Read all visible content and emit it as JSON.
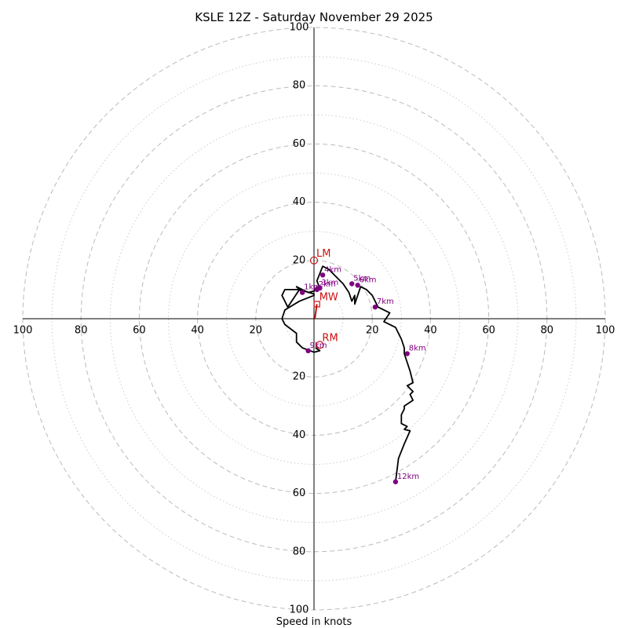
{
  "chart_data": {
    "type": "line",
    "title": "KSLE 12Z - Saturday November 29 2025",
    "xlabel": "Speed in knots",
    "ylabel": "",
    "xlim": [
      -100,
      100
    ],
    "ylim": [
      -100,
      100
    ],
    "units": "knots",
    "rings_major": [
      20,
      40,
      60,
      80,
      100
    ],
    "rings_minor": [
      10,
      30,
      50,
      70,
      90
    ],
    "tick_values": [
      20,
      40,
      60,
      80,
      100
    ],
    "grid": true,
    "colors": {
      "trace": "#000000",
      "altitude": "#800080",
      "motion": "#cc1111",
      "grid": "#bbbbbb",
      "axis": "#000000"
    },
    "series": [
      {
        "name": "hodograph",
        "u": [
          0.5,
          2,
          2,
          0,
          -4,
          -6,
          -6,
          -10,
          -11,
          -10,
          -5,
          0,
          0,
          -5,
          -10,
          -11,
          -9,
          -5,
          -4,
          -6,
          -2,
          0,
          1,
          1,
          2,
          1,
          3,
          5,
          7,
          10,
          12,
          13,
          14,
          14,
          16,
          18,
          20,
          22,
          26,
          24,
          28,
          30,
          31,
          31,
          32,
          33,
          34,
          32,
          34,
          33,
          34,
          31,
          31,
          30,
          30,
          32,
          31,
          33,
          31,
          29,
          28
        ],
        "v": [
          -10,
          -11,
          -11,
          -11.5,
          -10,
          -8,
          -5,
          -2,
          0,
          3,
          6,
          8,
          8.5,
          10,
          10,
          8,
          4,
          10,
          9,
          11,
          9,
          9.5,
          11,
          10,
          10.5,
          13,
          18,
          17,
          15,
          12,
          9,
          6,
          8,
          5,
          11,
          10,
          8,
          4,
          2,
          -1,
          -3,
          -7,
          -10,
          -12,
          -15,
          -18,
          -22,
          -23,
          -25,
          -26,
          -28,
          -30,
          -31,
          -33,
          -36,
          -37,
          -38,
          -38.5,
          -43,
          -48,
          -56
        ]
      }
    ],
    "altitude_points": [
      {
        "label": "9km",
        "u": -2,
        "v": -11,
        "label_placement": "right"
      },
      {
        "label": "1km",
        "u": -4,
        "v": 9,
        "label_placement": "right"
      },
      {
        "label": "2km",
        "u": 1,
        "v": 10,
        "label_placement": "right"
      },
      {
        "label": "3km",
        "u": 2,
        "v": 10.5,
        "label_placement": "right"
      },
      {
        "label": "4km",
        "u": 3,
        "v": 15,
        "label_placement": "right"
      },
      {
        "label": "5km",
        "u": 13,
        "v": 12,
        "label_placement": "right"
      },
      {
        "label": "6km",
        "u": 15,
        "v": 11.5,
        "label_placement": "right"
      },
      {
        "label": "7km",
        "u": 21,
        "v": 4,
        "label_placement": "right"
      },
      {
        "label": "8km",
        "u": 32,
        "v": -12,
        "label_placement": "right"
      },
      {
        "label": "12km",
        "u": 28,
        "v": -56,
        "label_placement": "right"
      }
    ],
    "storm_motion": [
      {
        "label": "LM",
        "u": 0,
        "v": 20,
        "marker": "circle"
      },
      {
        "label": "MW",
        "u": 1,
        "v": 5,
        "marker": "square"
      },
      {
        "label": "RM",
        "u": 2,
        "v": -9,
        "marker": "circle"
      }
    ],
    "shear_vector": {
      "from": [
        0.3,
        0
      ],
      "to": [
        1,
        5
      ]
    }
  }
}
